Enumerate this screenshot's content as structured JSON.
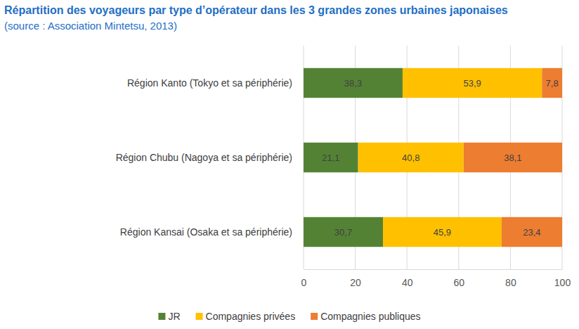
{
  "chart_data": {
    "type": "bar",
    "orientation": "horizontal",
    "stacked": true,
    "data_labels": true,
    "grid": true,
    "legend": "bottom",
    "title": "Répartition des voyageurs par type d’opérateur dans les 3 grandes zones urbaines japonaises",
    "subtitle": "(source : Association Mintetsu, 2013)",
    "categories": [
      "Région Kanto (Tokyo et sa périphérie)",
      "Région Chubu (Nagoya et sa périphérie)",
      "Région Kansai (Osaka et sa périphérie)"
    ],
    "series": [
      {
        "name": "JR",
        "color": "#548235",
        "values": [
          38.3,
          21.1,
          30.7
        ],
        "value_labels": [
          "38,3",
          "21,1",
          "30,7"
        ]
      },
      {
        "name": "Compagnies privées",
        "color": "#ffc000",
        "values": [
          53.9,
          40.8,
          45.9
        ],
        "value_labels": [
          "53,9",
          "40,8",
          "45,9"
        ]
      },
      {
        "name": "Compagnies publiques",
        "color": "#ed7d31",
        "values": [
          7.8,
          38.1,
          23.4
        ],
        "value_labels": [
          "7,8",
          "38,1",
          "23,4"
        ]
      }
    ],
    "xlim": [
      0,
      100
    ],
    "xticks": [
      0,
      20,
      40,
      60,
      80,
      100
    ]
  }
}
